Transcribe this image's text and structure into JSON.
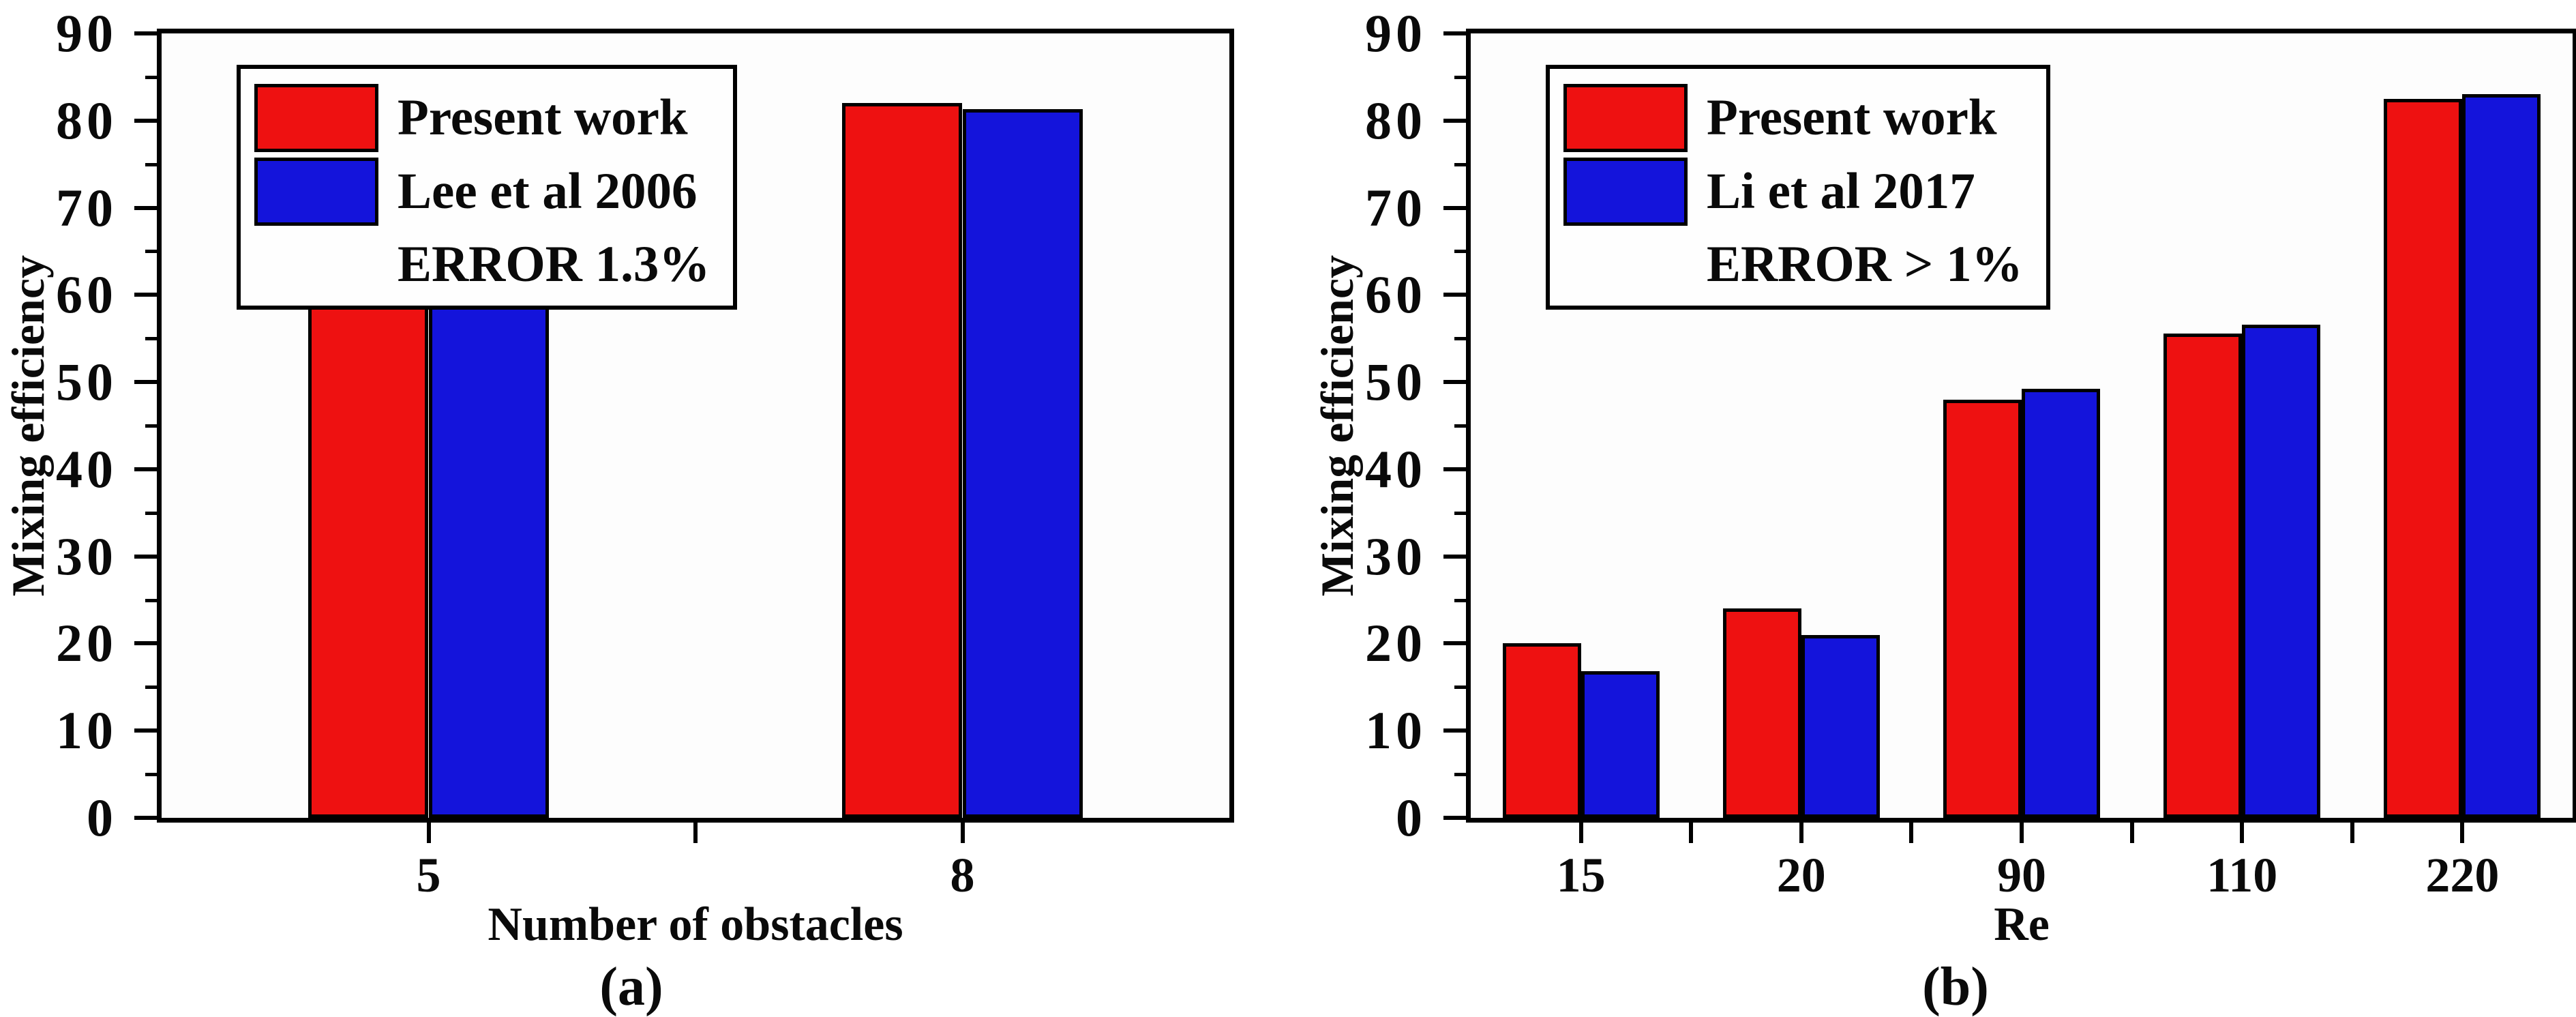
{
  "colors": {
    "present_work": "#ee1111",
    "reference": "#1414db",
    "axis": "#000000",
    "background": "#ffffff"
  },
  "chart_data": [
    {
      "type": "bar",
      "caption": "(a)",
      "title": "",
      "xlabel": "Number of obstacles",
      "ylabel": "Mixing efficiency",
      "ylim": [
        0,
        90
      ],
      "ytick_major": 10,
      "ytick_minor": 5,
      "grid": false,
      "legend_position": "top-left",
      "bar_width_frac": 0.113,
      "categories": [
        "5",
        "8"
      ],
      "series": [
        {
          "name": "Present work",
          "color": "#ee1111",
          "values": [
            61,
            82
          ]
        },
        {
          "name": "Lee et al 2006",
          "color": "#1414db",
          "values": [
            60.5,
            81.3
          ]
        }
      ],
      "legend_note": "ERROR 1.3%"
    },
    {
      "type": "bar",
      "caption": "(b)",
      "title": "",
      "xlabel": "Re",
      "ylabel": "Mixing efficiency",
      "ylim": [
        0,
        90
      ],
      "ytick_major": 10,
      "ytick_minor": 5,
      "grid": false,
      "legend_position": "top-left",
      "bar_width_frac": 0.0712,
      "categories": [
        "15",
        "20",
        "90",
        "110",
        "220"
      ],
      "series": [
        {
          "name": "Present work",
          "color": "#ee1111",
          "values": [
            20,
            24,
            48,
            55.6,
            82.5
          ]
        },
        {
          "name": "Li et al 2017",
          "color": "#1414db",
          "values": [
            16.8,
            21,
            49.2,
            56.6,
            83
          ]
        }
      ],
      "legend_note": "ERROR > 1%"
    }
  ]
}
